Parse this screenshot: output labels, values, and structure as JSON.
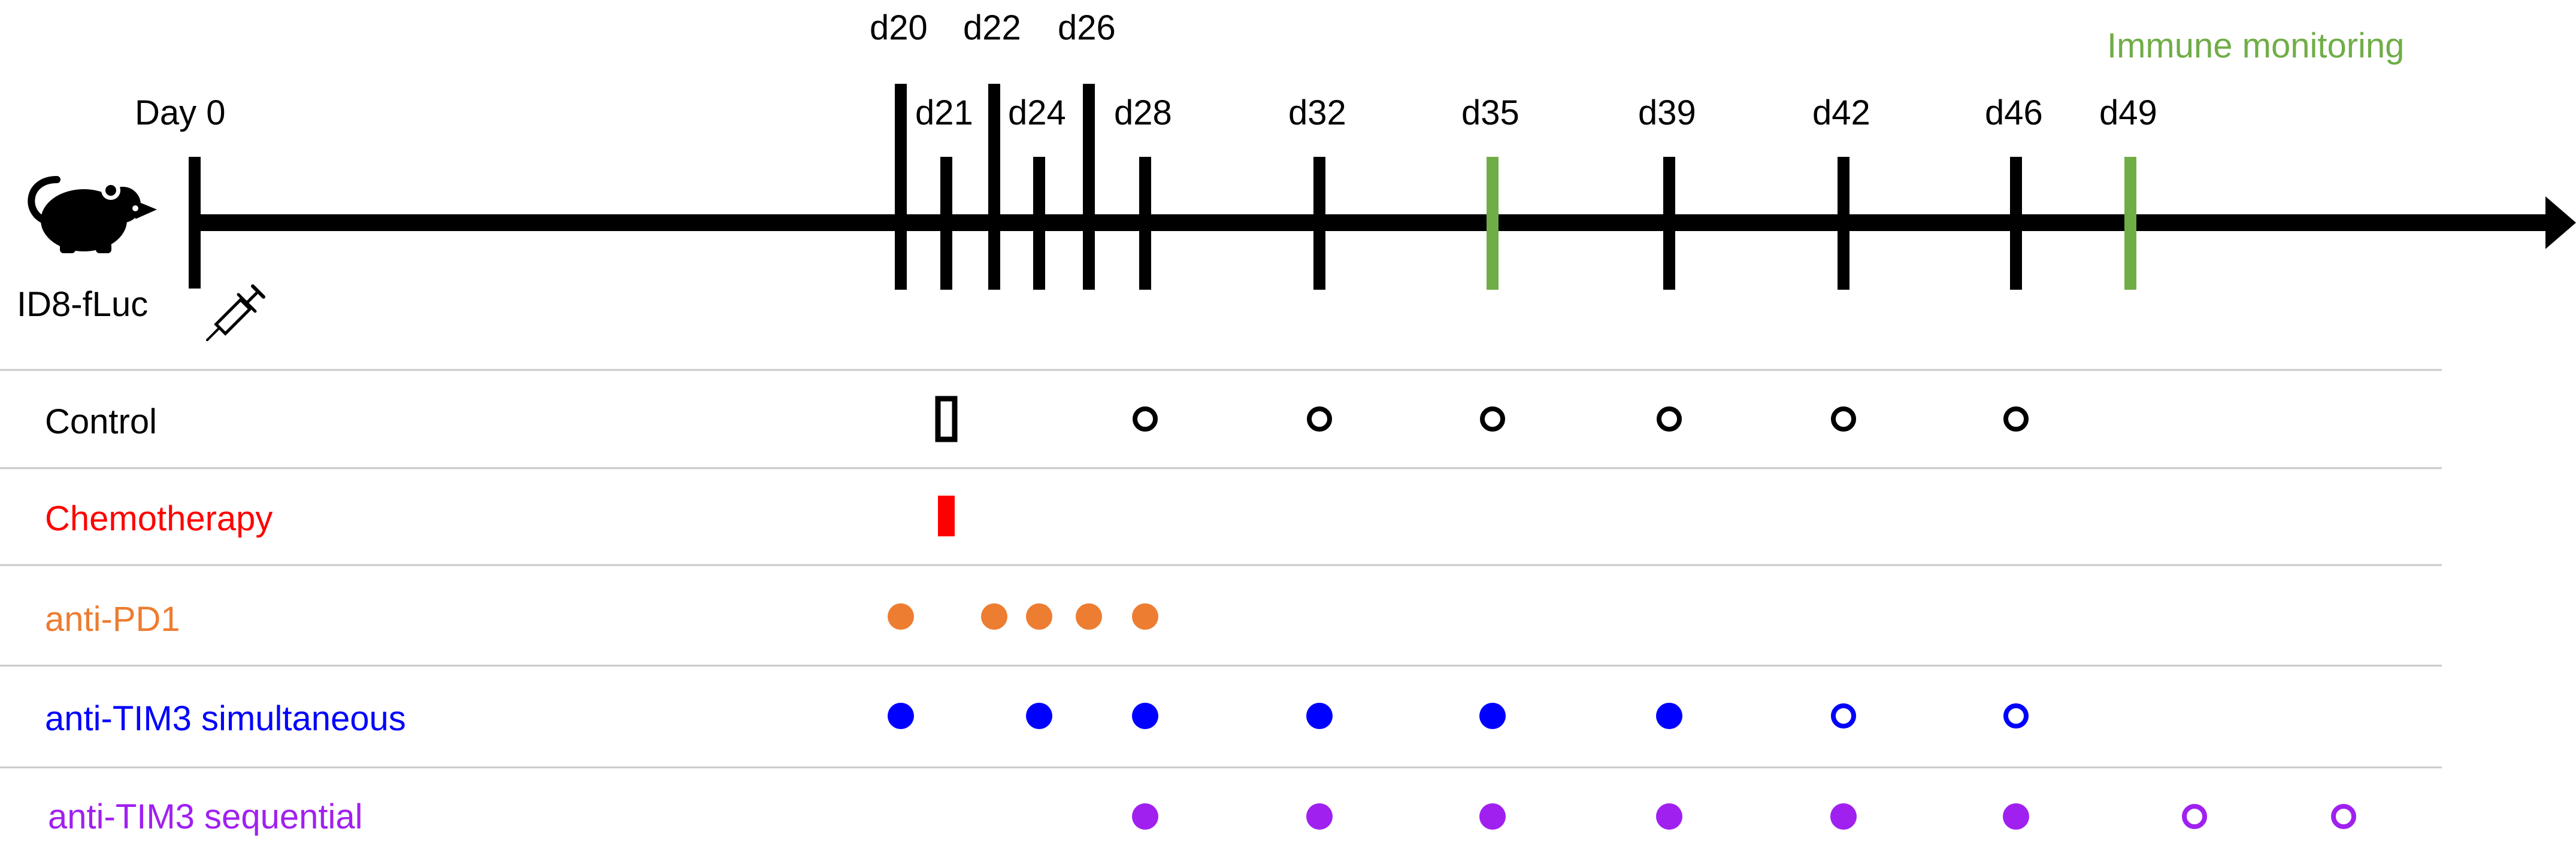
{
  "timeline": {
    "start_label": "Day 0",
    "cell_line": "ID8-fLuc",
    "monitoring_title": "Immune monitoring",
    "days": [
      {
        "label": "d20",
        "day": 20,
        "kind": "treatment"
      },
      {
        "label": "d21",
        "day": 21,
        "kind": "treatment"
      },
      {
        "label": "d22",
        "day": 22,
        "kind": "treatment"
      },
      {
        "label": "d24",
        "day": 24,
        "kind": "treatment"
      },
      {
        "label": "d26",
        "day": 26,
        "kind": "treatment"
      },
      {
        "label": "d28",
        "day": 28,
        "kind": "treatment"
      },
      {
        "label": "d32",
        "day": 32,
        "kind": "treatment"
      },
      {
        "label": "d35",
        "day": 35,
        "kind": "monitoring"
      },
      {
        "label": "d39",
        "day": 39,
        "kind": "treatment"
      },
      {
        "label": "d42",
        "day": 42,
        "kind": "treatment"
      },
      {
        "label": "d46",
        "day": 46,
        "kind": "treatment"
      },
      {
        "label": "d49",
        "day": 49,
        "kind": "monitoring"
      }
    ]
  },
  "colors": {
    "axis": "#000000",
    "monitoring": "#70ad47",
    "control": "#000000",
    "chemotherapy": "#ff0000",
    "anti_pd1": "#ed7d31",
    "anti_tim3_simultaneous": "#0000ff",
    "anti_tim3_sequential": "#a020f0",
    "divider": "#c8c8c8"
  },
  "groups": [
    {
      "name": "Control",
      "color": "#000000",
      "markers": [
        {
          "day": 21,
          "shape": "rect",
          "filled": false
        },
        {
          "day": 28,
          "shape": "circle",
          "filled": false
        },
        {
          "day": 32,
          "shape": "circle",
          "filled": false
        },
        {
          "day": 35,
          "shape": "circle",
          "filled": false
        },
        {
          "day": 39,
          "shape": "circle",
          "filled": false
        },
        {
          "day": 42,
          "shape": "circle",
          "filled": false
        },
        {
          "day": 46,
          "shape": "circle",
          "filled": false
        }
      ]
    },
    {
      "name": "Chemotherapy",
      "color": "#ff0000",
      "markers": [
        {
          "day": 21,
          "shape": "rect",
          "filled": true
        }
      ]
    },
    {
      "name": "anti-PD1",
      "color": "#ed7d31",
      "markers": [
        {
          "day": 20,
          "shape": "circle",
          "filled": true
        },
        {
          "day": 22,
          "shape": "circle",
          "filled": true
        },
        {
          "day": 24,
          "shape": "circle",
          "filled": true
        },
        {
          "day": 26,
          "shape": "circle",
          "filled": true
        },
        {
          "day": 28,
          "shape": "circle",
          "filled": true
        }
      ]
    },
    {
      "name": "anti-TIM3 simultaneous",
      "color": "#0000ff",
      "markers": [
        {
          "day": 20,
          "shape": "circle",
          "filled": true
        },
        {
          "day": 24,
          "shape": "circle",
          "filled": true
        },
        {
          "day": 28,
          "shape": "circle",
          "filled": true
        },
        {
          "day": 32,
          "shape": "circle",
          "filled": true
        },
        {
          "day": 35,
          "shape": "circle",
          "filled": true
        },
        {
          "day": 39,
          "shape": "circle",
          "filled": true
        },
        {
          "day": 42,
          "shape": "circle",
          "filled": false
        },
        {
          "day": 46,
          "shape": "circle",
          "filled": false
        }
      ]
    },
    {
      "name": "anti-TIM3 sequential",
      "color": "#a020f0",
      "markers": [
        {
          "day": 28,
          "shape": "circle",
          "filled": true
        },
        {
          "day": 32,
          "shape": "circle",
          "filled": true
        },
        {
          "day": 35,
          "shape": "circle",
          "filled": true
        },
        {
          "day": 39,
          "shape": "circle",
          "filled": true
        },
        {
          "day": 42,
          "shape": "circle",
          "filled": true
        },
        {
          "day": 46,
          "shape": "circle",
          "filled": true
        },
        {
          "day": 53,
          "shape": "circle",
          "filled": false
        },
        {
          "day": 56,
          "shape": "circle",
          "filled": false
        }
      ]
    }
  ]
}
